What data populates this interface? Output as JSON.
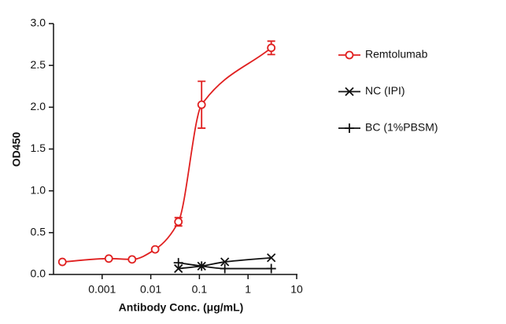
{
  "chart_data": {
    "type": "line",
    "xlabel": "Antibody Conc. (μg/mL)",
    "ylabel": "OD450",
    "xscale": "log",
    "xlim": [
      0.0001,
      10
    ],
    "xticks": [
      0.001,
      0.01,
      0.1,
      1,
      10
    ],
    "ylim": [
      0,
      3
    ],
    "yticks": [
      {
        "value": 0,
        "label": "0.0"
      },
      0.5,
      {
        "value": 1,
        "label": "1.0"
      },
      1.5,
      {
        "value": 2,
        "label": "2.0"
      },
      2.5,
      {
        "value": 3,
        "label": "3.0"
      }
    ],
    "legend": "right",
    "series": [
      {
        "name": "Remtolumab",
        "color": "#e02020",
        "marker": "circle",
        "smooth": true,
        "x": [
          0.000152,
          0.00137,
          0.00412,
          0.0123,
          0.037,
          0.111,
          3
        ],
        "values": [
          0.15,
          0.19,
          0.18,
          0.3,
          0.63,
          2.03,
          2.71
        ],
        "errors": [
          null,
          null,
          null,
          null,
          0.05,
          0.28,
          0.08
        ]
      },
      {
        "name": "NC (IPI)",
        "color": "#111111",
        "marker": "x",
        "smooth": true,
        "x": [
          0.037,
          0.111,
          0.333,
          3
        ],
        "values": [
          0.07,
          0.1,
          0.15,
          0.2
        ]
      },
      {
        "name": "BC (1%PBSM)",
        "color": "#111111",
        "marker": "plus",
        "smooth": true,
        "x": [
          0.037,
          0.111,
          0.333,
          3
        ],
        "values": [
          0.14,
          0.1,
          0.07,
          0.07
        ]
      }
    ]
  }
}
